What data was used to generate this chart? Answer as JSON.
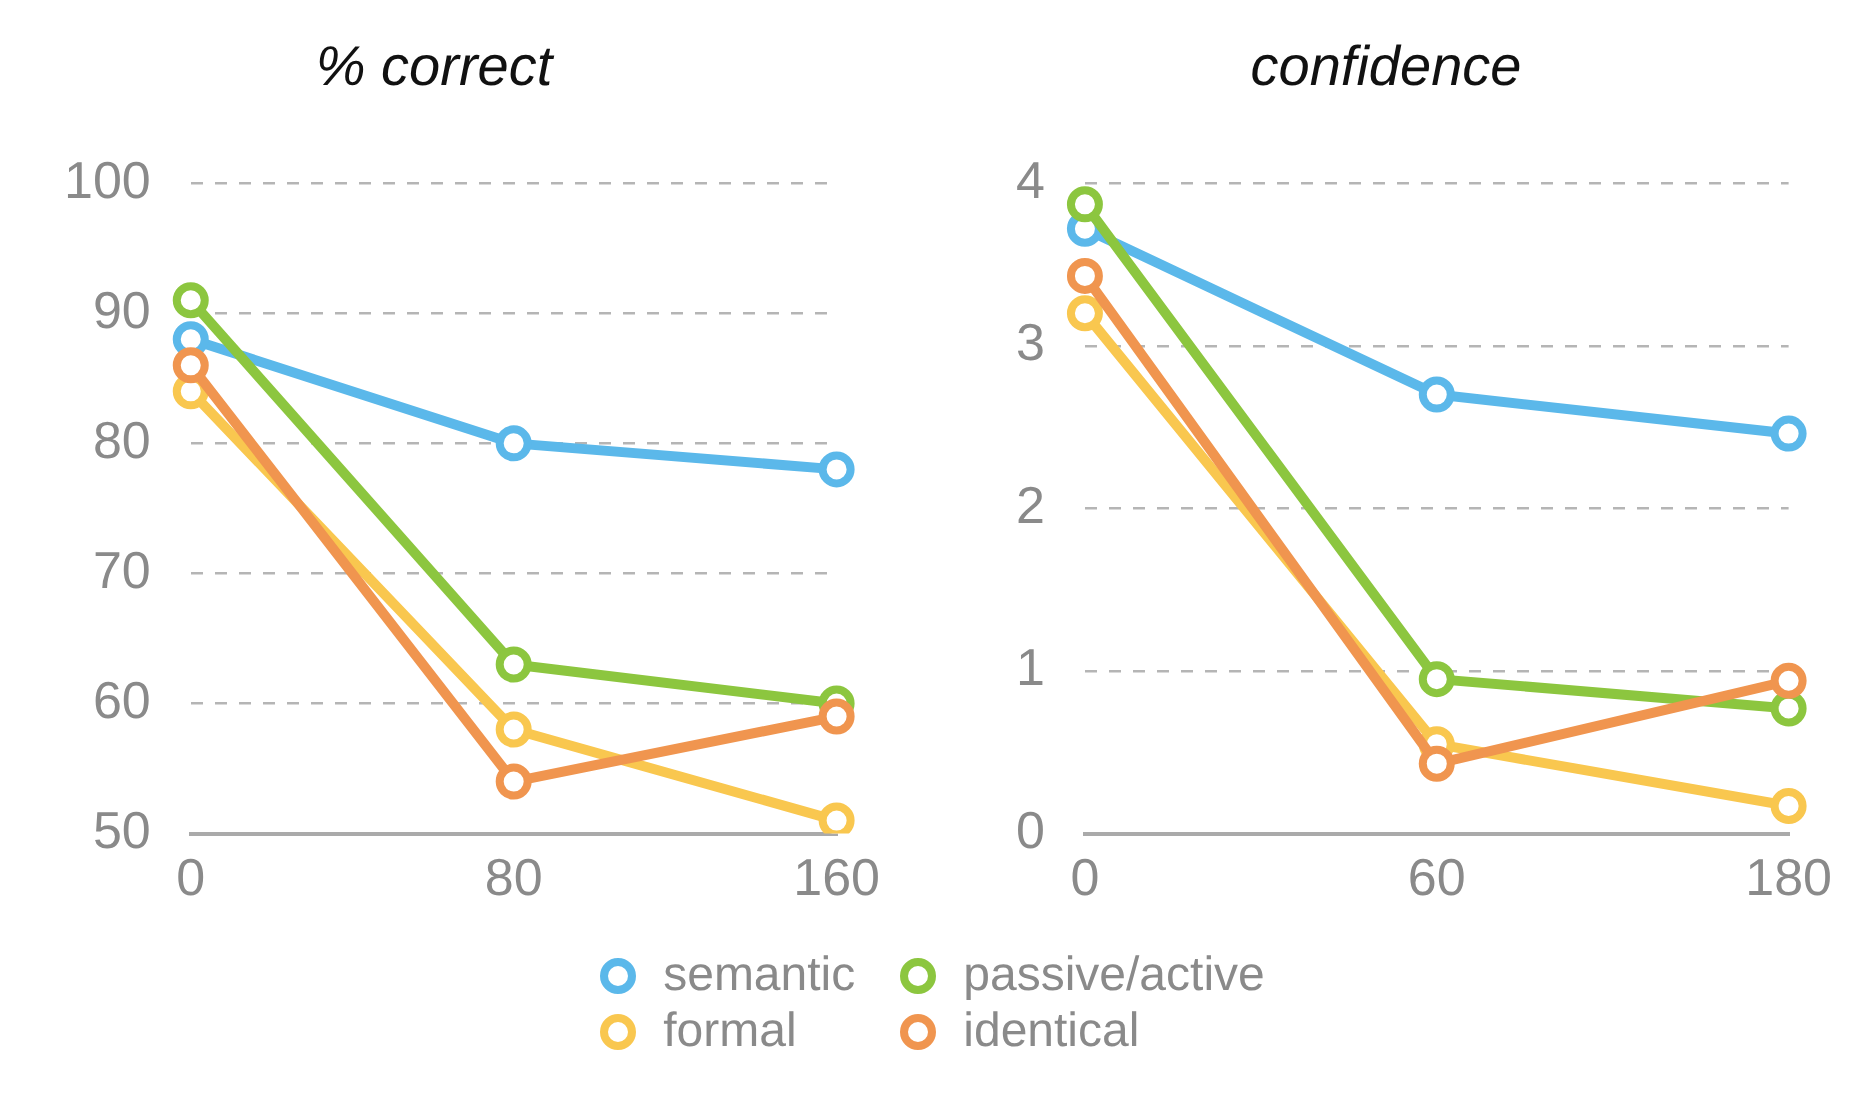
{
  "chart_data": [
    {
      "type": "line",
      "title": "% correct",
      "categories": [
        "0",
        "80",
        "160"
      ],
      "ylim": [
        50,
        100
      ],
      "yticks": [
        50,
        60,
        70,
        80,
        90,
        100
      ],
      "grid": "y",
      "marker": "circle",
      "line_style": "solid",
      "legend": "bottom",
      "series": [
        {
          "name": "semantic",
          "color": "#5bb8ea",
          "values": [
            88,
            80,
            78
          ]
        },
        {
          "name": "passive/active",
          "color": "#8cc63f",
          "values": [
            91,
            63,
            60
          ]
        },
        {
          "name": "formal",
          "color": "#f9c74f",
          "values": [
            84,
            58,
            51
          ]
        },
        {
          "name": "identical",
          "color": "#f0954f",
          "values": [
            86,
            54,
            59
          ]
        }
      ]
    },
    {
      "type": "line",
      "title": "confidence",
      "categories": [
        "0",
        "60",
        "180"
      ],
      "ylim": [
        0,
        4
      ],
      "yticks": [
        0,
        1,
        2,
        3,
        4
      ],
      "grid": "y",
      "marker": "circle",
      "line_style": "solid",
      "series": [
        {
          "color": "#5bb8ea",
          "values": [
            3.72,
            2.7,
            2.46
          ]
        },
        {
          "color": "#8cc63f",
          "values": [
            3.87,
            0.95,
            0.77
          ]
        },
        {
          "color": "#f9c74f",
          "values": [
            3.2,
            0.55,
            0.17
          ]
        },
        {
          "color": "#f0954f",
          "values": [
            3.43,
            0.43,
            0.94
          ]
        }
      ]
    }
  ]
}
